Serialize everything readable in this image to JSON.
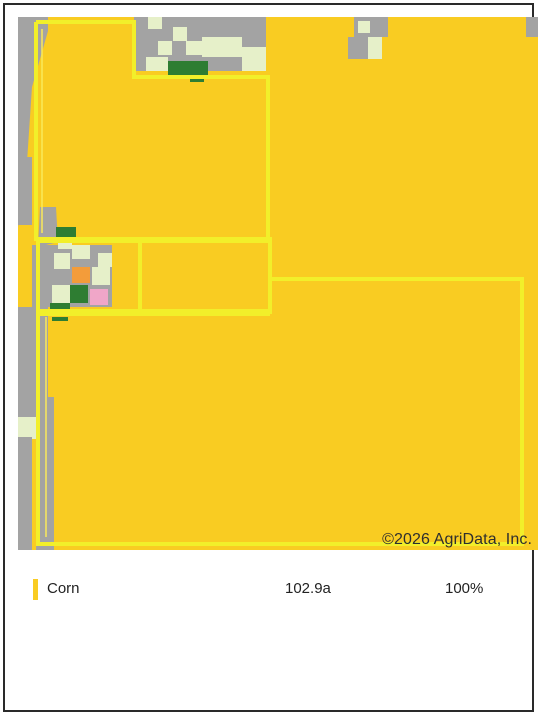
{
  "map": {
    "copyright": "©2026 AgriData, Inc.",
    "crop_color": "#f9cc22",
    "boundary_color": "#f2ef2a"
  },
  "legend": {
    "items": [
      {
        "label": "Corn",
        "acres": "102.9a",
        "percent": "100%",
        "color": "#f9cc22"
      }
    ]
  }
}
